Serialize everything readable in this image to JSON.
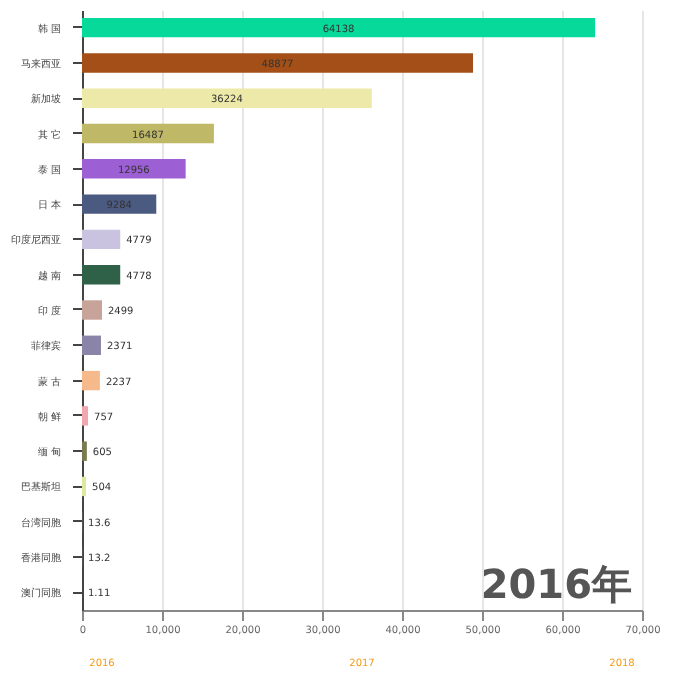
{
  "chart_data": {
    "type": "bar",
    "orientation": "horizontal",
    "categories": [
      "韩 国",
      "马来西亚",
      "新加坡",
      "其 它",
      "泰 国",
      "日 本",
      "印度尼西亚",
      "越 南",
      "印 度",
      "菲律宾",
      "蒙 古",
      "朝 鲜",
      "缅 甸",
      "巴基斯坦",
      "台湾同胞",
      "香港同胞",
      "澳门同胞"
    ],
    "values": [
      64138,
      48877,
      36224,
      16487,
      12956,
      9284,
      4779,
      4778,
      2499,
      2371,
      2237,
      757,
      605,
      504,
      13.6,
      13.2,
      1.11
    ],
    "colors": [
      "#07d99a",
      "#a34f17",
      "#ede9a8",
      "#bfb866",
      "#9c5fd4",
      "#4b5a80",
      "#c9c3e0",
      "#2f6148",
      "#c7a39a",
      "#8a85a8",
      "#f5b98c",
      "#f0a8b0",
      "#7a7a50",
      "#dde8a0",
      "#e0e0e0",
      "#e0e0e0",
      "#e0e0e0"
    ],
    "xlim": [
      0,
      70000
    ],
    "xticks": [
      0,
      {
        "value": 10000,
        "label": "10,000"
      },
      {
        "value": 20000,
        "label": "20,000"
      },
      {
        "value": 30000,
        "label": "30,000"
      },
      {
        "value": 40000,
        "label": "40,000"
      },
      {
        "value": 50000,
        "label": "50,000"
      },
      {
        "value": 60000,
        "label": "60,000"
      },
      {
        "value": 70000,
        "label": "70,000"
      }
    ],
    "grid": "x",
    "data_labels": true,
    "annotations": [
      "2016年",
      "2016",
      "2017",
      "2018"
    ]
  }
}
